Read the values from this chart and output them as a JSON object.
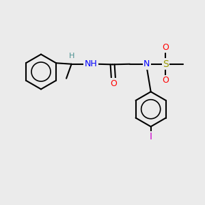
{
  "background_color": "#ebebeb",
  "bond_color": "#000000",
  "bond_lw": 1.5,
  "atom_colors": {
    "N": "#0000ff",
    "O": "#ff0000",
    "S": "#999900",
    "I": "#cc00cc",
    "H": "#4a9090",
    "C": "#000000"
  },
  "font_size": 9,
  "font_size_small": 8
}
